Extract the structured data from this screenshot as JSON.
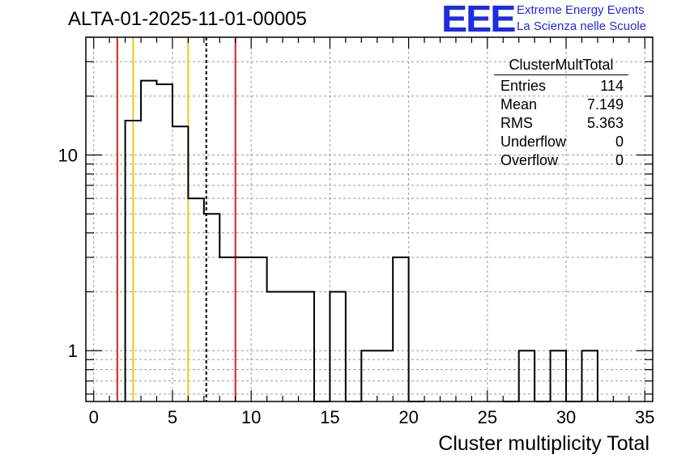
{
  "page": {
    "title": "ALTA-01-2025-11-01-00005",
    "logo": {
      "mark": "EEE",
      "line1": "Extreme Energy Events",
      "line2": "La Scienza nelle Scuole"
    }
  },
  "stats": {
    "name": "ClusterMultTotal",
    "rows": [
      {
        "label": "Entries",
        "value": "114"
      },
      {
        "label": "Mean",
        "value": "7.149"
      },
      {
        "label": "RMS",
        "value": "5.363"
      },
      {
        "label": "Underflow",
        "value": "0"
      },
      {
        "label": "Overflow",
        "value": "0"
      }
    ]
  },
  "chart_data": {
    "type": "histogram",
    "xlabel": "Cluster multiplicity Total",
    "ylabel": "",
    "xlim": [
      -0.5,
      35.5
    ],
    "ylim": [
      0.55,
      40
    ],
    "y_scale": "log",
    "grid": true,
    "x_ticks": [
      0,
      5,
      10,
      15,
      20,
      25,
      30,
      35
    ],
    "y_ticks": [
      1,
      10
    ],
    "bin_width": 1,
    "bins": [
      {
        "x": 2.5,
        "count": 15
      },
      {
        "x": 3.5,
        "count": 24
      },
      {
        "x": 4.5,
        "count": 23
      },
      {
        "x": 5.5,
        "count": 14
      },
      {
        "x": 6.5,
        "count": 6
      },
      {
        "x": 7.5,
        "count": 5
      },
      {
        "x": 8.5,
        "count": 3
      },
      {
        "x": 9.5,
        "count": 3
      },
      {
        "x": 10.5,
        "count": 3
      },
      {
        "x": 11.5,
        "count": 2
      },
      {
        "x": 12.5,
        "count": 2
      },
      {
        "x": 13.5,
        "count": 2
      },
      {
        "x": 14.5,
        "count": 0
      },
      {
        "x": 15.5,
        "count": 2
      },
      {
        "x": 16.5,
        "count": 0
      },
      {
        "x": 17.5,
        "count": 1
      },
      {
        "x": 18.5,
        "count": 1
      },
      {
        "x": 19.5,
        "count": 3
      },
      {
        "x": 20.5,
        "count": 0
      },
      {
        "x": 26.5,
        "count": 0
      },
      {
        "x": 27.5,
        "count": 1
      },
      {
        "x": 28.5,
        "count": 0
      },
      {
        "x": 29.5,
        "count": 1
      },
      {
        "x": 30.5,
        "count": 0
      },
      {
        "x": 31.5,
        "count": 1
      }
    ],
    "markers": [
      {
        "x": 1.5,
        "color": "#e01b1b",
        "style": "solid"
      },
      {
        "x": 2.5,
        "color": "#f0c419",
        "style": "solid"
      },
      {
        "x": 6.0,
        "color": "#f0c419",
        "style": "solid"
      },
      {
        "x": 7.149,
        "color": "#000000",
        "style": "dashed"
      },
      {
        "x": 9.0,
        "color": "#e01b1b",
        "style": "solid"
      }
    ]
  }
}
